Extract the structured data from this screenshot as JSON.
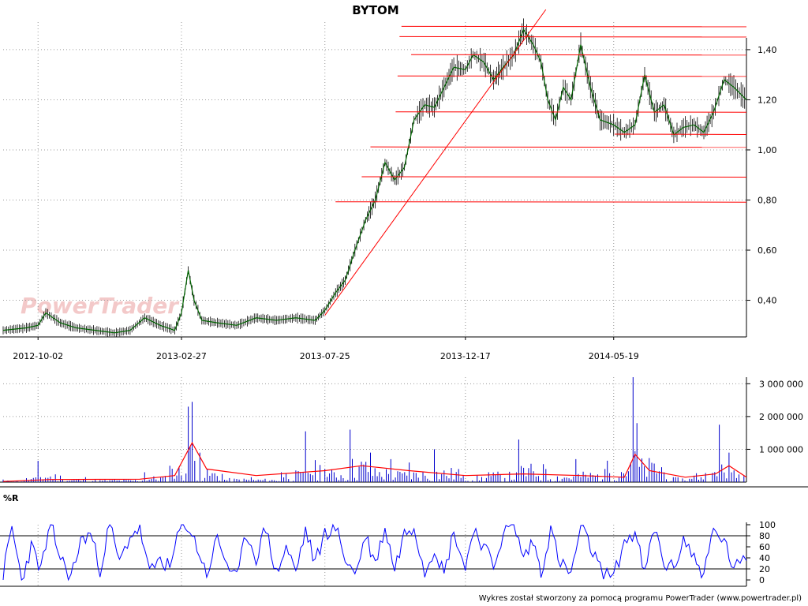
{
  "title": "BYTOM",
  "footer": "Wykres został stworzony za pomocą programu PowerTrader (www.powertrader.pl)",
  "watermark": "PowerTrader",
  "colors": {
    "price": "#006400",
    "trendline": "#ff0000",
    "volume_bars": "#0000cc",
    "volume_avg": "#ff0000",
    "williams": "#0000ff",
    "grid": "#999999"
  },
  "chart_data": [
    {
      "type": "line",
      "title": "BYTOM",
      "x_tick_labels": [
        "2012-10-02",
        "2013-02-27",
        "2013-07-25",
        "2013-12-17",
        "2014-05-19"
      ],
      "x_range": [
        "2012-08-27",
        "2014-10-03"
      ],
      "y_ticks": [
        "0,40",
        "0,60",
        "0,80",
        "1,00",
        "1,20",
        "1,40"
      ],
      "ylim": [
        0.26,
        1.51
      ],
      "grid": true,
      "series": [
        {
          "x": [
            "2012-08-27",
            "2012-09-20",
            "2012-10-02",
            "2012-10-10",
            "2012-10-25",
            "2012-11-10",
            "2012-11-30",
            "2012-12-20",
            "2013-01-05",
            "2013-01-20",
            "2013-02-05",
            "2013-02-20",
            "2013-02-27",
            "2013-03-06",
            "2013-03-12",
            "2013-03-20",
            "2013-04-05",
            "2013-04-25",
            "2013-05-15",
            "2013-06-05",
            "2013-06-25",
            "2013-07-15",
            "2013-07-25",
            "2013-08-05",
            "2013-08-15",
            "2013-08-25",
            "2013-09-05",
            "2013-09-15",
            "2013-09-25",
            "2013-10-05",
            "2013-10-15",
            "2013-10-25",
            "2013-11-05",
            "2013-11-15",
            "2013-11-25",
            "2013-12-05",
            "2013-12-17",
            "2013-12-25",
            "2014-01-05",
            "2014-01-15",
            "2014-01-25",
            "2014-02-05",
            "2014-02-15",
            "2014-02-25",
            "2014-03-05",
            "2014-03-12",
            "2014-03-20",
            "2014-03-28",
            "2014-04-05",
            "2014-04-15",
            "2014-04-25",
            "2014-05-05",
            "2014-05-19",
            "2014-05-30",
            "2014-06-10",
            "2014-06-20",
            "2014-06-30",
            "2014-07-10",
            "2014-07-20",
            "2014-07-30",
            "2014-08-10",
            "2014-08-20",
            "2014-08-30",
            "2014-09-10",
            "2014-09-20",
            "2014-10-03"
          ],
          "values": [
            0.28,
            0.29,
            0.3,
            0.35,
            0.31,
            0.29,
            0.28,
            0.27,
            0.28,
            0.33,
            0.3,
            0.28,
            0.35,
            0.52,
            0.4,
            0.32,
            0.31,
            0.3,
            0.33,
            0.32,
            0.33,
            0.32,
            0.36,
            0.43,
            0.48,
            0.6,
            0.72,
            0.8,
            0.95,
            0.88,
            0.93,
            1.12,
            1.18,
            1.17,
            1.25,
            1.33,
            1.32,
            1.38,
            1.35,
            1.28,
            1.33,
            1.38,
            1.48,
            1.42,
            1.35,
            1.2,
            1.12,
            1.25,
            1.2,
            1.42,
            1.25,
            1.12,
            1.1,
            1.07,
            1.1,
            1.3,
            1.15,
            1.18,
            1.06,
            1.09,
            1.1,
            1.07,
            1.15,
            1.28,
            1.25,
            1.2
          ]
        }
      ]
    },
    {
      "type": "bar",
      "y_ticks": [
        "1 000 000",
        "2 000 000",
        "3 000 000"
      ],
      "ylim": [
        0,
        3200000
      ],
      "series": [
        {
          "x": [
            "2012-08-27",
            "2012-09-20",
            "2012-10-02",
            "2012-10-25",
            "2012-11-20",
            "2012-12-20",
            "2013-01-20",
            "2013-02-15",
            "2013-03-06",
            "2013-03-10",
            "2013-03-18",
            "2013-04-10",
            "2013-05-10",
            "2013-06-10",
            "2013-07-05",
            "2013-07-25",
            "2013-08-20",
            "2013-09-10",
            "2013-10-01",
            "2013-10-20",
            "2013-11-15",
            "2013-12-10",
            "2014-01-10",
            "2014-02-10",
            "2014-03-10",
            "2014-04-10",
            "2014-05-10",
            "2014-06-08",
            "2014-06-12",
            "2014-07-10",
            "2014-08-10",
            "2014-09-05",
            "2014-09-15",
            "2014-10-03"
          ],
          "values": [
            80000,
            120000,
            650000,
            200000,
            150000,
            90000,
            300000,
            500000,
            2300000,
            2450000,
            900000,
            250000,
            150000,
            300000,
            1550000,
            400000,
            1600000,
            900000,
            700000,
            600000,
            1000000,
            400000,
            300000,
            1300000,
            400000,
            700000,
            400000,
            3200000,
            1800000,
            300000,
            200000,
            1750000,
            900000,
            150000
          ]
        },
        {
          "x": [
            "2012-08-27",
            "2012-10-15",
            "2013-01-15",
            "2013-02-20",
            "2013-03-10",
            "2013-03-25",
            "2013-05-15",
            "2013-07-25",
            "2013-09-01",
            "2013-10-20",
            "2013-12-17",
            "2014-02-15",
            "2014-04-15",
            "2014-05-30",
            "2014-06-10",
            "2014-06-25",
            "2014-08-01",
            "2014-09-01",
            "2014-09-15",
            "2014-10-03"
          ],
          "values": [
            20000,
            80000,
            90000,
            200000,
            1200000,
            400000,
            200000,
            350000,
            500000,
            350000,
            200000,
            250000,
            200000,
            150000,
            850000,
            350000,
            150000,
            250000,
            500000,
            150000
          ]
        }
      ]
    },
    {
      "type": "line",
      "title": "%R",
      "y_ticks": [
        "0",
        "20",
        "40",
        "60",
        "80",
        "100"
      ],
      "ylim": [
        0,
        100
      ],
      "reference_lines": [
        20,
        80
      ],
      "series": [
        {
          "x": [
            "2012-08-27",
            "2012-09-05",
            "2012-09-15",
            "2012-09-25",
            "2012-10-05",
            "2012-10-15",
            "2012-10-25",
            "2012-11-05",
            "2012-11-15",
            "2012-11-25",
            "2012-12-05",
            "2012-12-15",
            "2012-12-25",
            "2013-01-05",
            "2013-01-15",
            "2013-01-25",
            "2013-02-05",
            "2013-02-15",
            "2013-02-25",
            "2013-03-05",
            "2013-03-15",
            "2013-03-25",
            "2013-04-05",
            "2013-04-15",
            "2013-04-25",
            "2013-05-05",
            "2013-05-15",
            "2013-05-25",
            "2013-06-05",
            "2013-06-15",
            "2013-06-25",
            "2013-07-05",
            "2013-07-15",
            "2013-07-25",
            "2013-08-05",
            "2013-08-15",
            "2013-08-25",
            "2013-09-05",
            "2013-09-15",
            "2013-09-25",
            "2013-10-05",
            "2013-10-15",
            "2013-10-25",
            "2013-11-05",
            "2013-11-15",
            "2013-11-25",
            "2013-12-05",
            "2013-12-17",
            "2013-12-25",
            "2014-01-05",
            "2014-01-15",
            "2014-01-25",
            "2014-02-05",
            "2014-02-15",
            "2014-02-25",
            "2014-03-05",
            "2014-03-15",
            "2014-03-25",
            "2014-04-05",
            "2014-04-15",
            "2014-04-25",
            "2014-05-05",
            "2014-05-19",
            "2014-05-30",
            "2014-06-10",
            "2014-06-20",
            "2014-06-30",
            "2014-07-10",
            "2014-07-20",
            "2014-07-30",
            "2014-08-10",
            "2014-08-20",
            "2014-08-30",
            "2014-09-10",
            "2014-09-20",
            "2014-10-03"
          ],
          "values": [
            10,
            95,
            0,
            60,
            20,
            100,
            40,
            5,
            70,
            85,
            20,
            100,
            30,
            80,
            95,
            10,
            40,
            20,
            90,
            100,
            60,
            10,
            75,
            30,
            0,
            85,
            40,
            95,
            10,
            60,
            15,
            90,
            30,
            85,
            95,
            40,
            10,
            80,
            30,
            95,
            20,
            85,
            100,
            15,
            60,
            10,
            90,
            20,
            95,
            60,
            25,
            85,
            100,
            40,
            70,
            15,
            90,
            30,
            10,
            95,
            60,
            20,
            5,
            70,
            85,
            10,
            95,
            30,
            20,
            75,
            40,
            10,
            90,
            70,
            20,
            35
          ]
        }
      ]
    }
  ]
}
